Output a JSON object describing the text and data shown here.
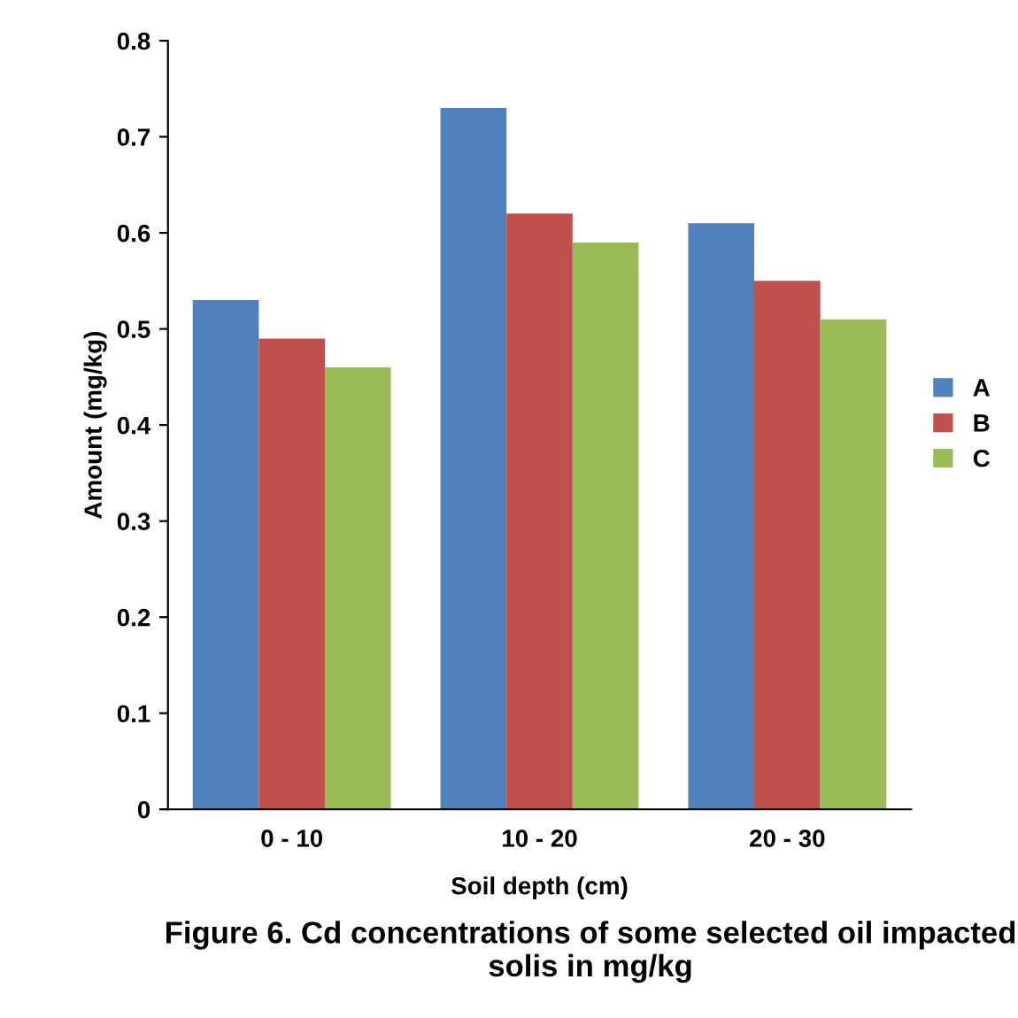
{
  "chart_data": {
    "type": "bar",
    "xlabel": "Soil depth (cm)",
    "ylabel": "Amount (mg/kg)",
    "categories": [
      "0 - 10",
      "10 - 20",
      "20 - 30"
    ],
    "series": [
      {
        "name": "A",
        "color": "#4f81bd",
        "values": [
          0.53,
          0.73,
          0.61
        ]
      },
      {
        "name": "B",
        "color": "#c0504d",
        "values": [
          0.49,
          0.62,
          0.55
        ]
      },
      {
        "name": "C",
        "color": "#9bbb59",
        "values": [
          0.46,
          0.59,
          0.51
        ]
      }
    ],
    "ylim": [
      0,
      0.8
    ],
    "yticks": [
      0,
      0.1,
      0.2,
      0.3,
      0.4,
      0.5,
      0.6,
      0.7,
      0.8
    ],
    "grid": false,
    "legend": "right",
    "annotations": [
      "Figure 6. Cd concentrations of some selected oil impacted solis in mg/kg"
    ]
  }
}
